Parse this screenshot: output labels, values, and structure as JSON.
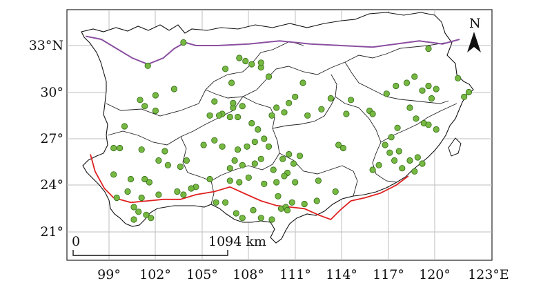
{
  "map": {
    "x_ticks": [
      "99°",
      "102°",
      "105°",
      "108°",
      "111°",
      "114°",
      "117°",
      "120°",
      "123°E"
    ],
    "y_ticks": [
      "33°N",
      "30°",
      "27°",
      "24°",
      "21°"
    ],
    "north_label": "N",
    "scale_start": "0",
    "scale_end": "1094 km",
    "colors": {
      "site": "#77b843",
      "north_line": "#8a4fa0",
      "south_line": "#e02020",
      "boundary": "#222222",
      "grid": "#bdbdbd"
    },
    "lon_range": [
      97,
      124
    ],
    "lat_range": [
      20,
      35
    ],
    "north_boundary_line": [
      [
        97.5,
        33.6
      ],
      [
        98.5,
        33.4
      ],
      [
        99.5,
        32.8
      ],
      [
        100.5,
        32.2
      ],
      [
        101.5,
        31.8
      ],
      [
        102.5,
        32.2
      ],
      [
        103.2,
        32.8
      ],
      [
        103.9,
        33.2
      ],
      [
        104.6,
        33.0
      ],
      [
        106,
        33.0
      ],
      [
        108,
        33.1
      ],
      [
        110,
        33.3
      ],
      [
        112,
        33.1
      ],
      [
        114,
        33.0
      ],
      [
        116,
        32.9
      ],
      [
        117.5,
        33.1
      ],
      [
        119,
        33.3
      ],
      [
        120.5,
        33.1
      ],
      [
        121.6,
        33.4
      ]
    ],
    "south_boundary_line": [
      [
        97.8,
        26.0
      ],
      [
        98.1,
        24.9
      ],
      [
        98.7,
        23.8
      ],
      [
        99.3,
        23.2
      ],
      [
        100.4,
        22.9
      ],
      [
        101.5,
        23.0
      ],
      [
        102.5,
        23.1
      ],
      [
        103.6,
        23.1
      ],
      [
        104.6,
        23.4
      ],
      [
        105.8,
        23.6
      ],
      [
        106.8,
        23.9
      ],
      [
        107.9,
        23.4
      ],
      [
        108.8,
        23.0
      ],
      [
        109.8,
        22.7
      ],
      [
        110.7,
        22.6
      ],
      [
        111.6,
        22.5
      ],
      [
        112.5,
        22.1
      ],
      [
        113.3,
        21.8
      ],
      [
        113.9,
        22.4
      ],
      [
        114.6,
        23.0
      ],
      [
        115.5,
        23.2
      ],
      [
        116.5,
        23.5
      ],
      [
        117.5,
        24.0
      ],
      [
        118.3,
        24.6
      ]
    ],
    "sites": [
      [
        103.8,
        33.2
      ],
      [
        101.5,
        31.7
      ],
      [
        107.4,
        32.2
      ],
      [
        107.8,
        32.0
      ],
      [
        108.2,
        31.8
      ],
      [
        108.8,
        31.6
      ],
      [
        109.3,
        31.0
      ],
      [
        108.8,
        31.9
      ],
      [
        106.5,
        31.5
      ],
      [
        106.9,
        30.6
      ],
      [
        102.0,
        29.8
      ],
      [
        103.2,
        30.2
      ],
      [
        101.0,
        29.5
      ],
      [
        101.3,
        29.1
      ],
      [
        102.0,
        28.8
      ],
      [
        107.0,
        29.0
      ],
      [
        107.6,
        29.1
      ],
      [
        106.3,
        28.6
      ],
      [
        106.8,
        28.4
      ],
      [
        107.3,
        28.4
      ],
      [
        105.8,
        29.4
      ],
      [
        105.5,
        28.5
      ],
      [
        106.1,
        28.5
      ],
      [
        108.2,
        28.0
      ],
      [
        108.6,
        27.6
      ],
      [
        109.5,
        28.5
      ],
      [
        109.8,
        29.0
      ],
      [
        110.6,
        29.3
      ],
      [
        110.3,
        28.7
      ],
      [
        111.8,
        28.5
      ],
      [
        100.0,
        27.8
      ],
      [
        99.3,
        26.4
      ],
      [
        99.7,
        26.4
      ],
      [
        101.1,
        26.3
      ],
      [
        102.6,
        26.2
      ],
      [
        102.2,
        25.6
      ],
      [
        102.8,
        25.3
      ],
      [
        103.6,
        25.2
      ],
      [
        104.0,
        25.6
      ],
      [
        105.1,
        26.6
      ],
      [
        105.8,
        26.9
      ],
      [
        106.3,
        26.5
      ],
      [
        107.3,
        26.3
      ],
      [
        107.9,
        26.5
      ],
      [
        108.4,
        26.8
      ],
      [
        109.0,
        27.0
      ],
      [
        109.3,
        26.5
      ],
      [
        107.1,
        25.6
      ],
      [
        106.8,
        25.1
      ],
      [
        107.6,
        25.3
      ],
      [
        108.4,
        25.4
      ],
      [
        108.8,
        25.7
      ],
      [
        109.6,
        25.0
      ],
      [
        110.2,
        25.7
      ],
      [
        110.6,
        26.0
      ],
      [
        110.9,
        25.4
      ],
      [
        111.3,
        25.9
      ],
      [
        110.5,
        24.8
      ],
      [
        111.0,
        24.2
      ],
      [
        110.3,
        24.6
      ],
      [
        109.8,
        24.2
      ],
      [
        109.0,
        24.1
      ],
      [
        108.0,
        24.5
      ],
      [
        107.4,
        24.2
      ],
      [
        106.8,
        24.3
      ],
      [
        105.5,
        24.4
      ],
      [
        104.6,
        23.9
      ],
      [
        103.8,
        23.4
      ],
      [
        103.4,
        23.6
      ],
      [
        102.2,
        23.4
      ],
      [
        101.1,
        23.2
      ],
      [
        100.6,
        22.6
      ],
      [
        100.9,
        22.3
      ],
      [
        101.4,
        22.1
      ],
      [
        101.7,
        21.9
      ],
      [
        100.6,
        21.8
      ],
      [
        100.2,
        23.6
      ],
      [
        99.5,
        23.2
      ],
      [
        99.3,
        24.7
      ],
      [
        100.4,
        24.4
      ],
      [
        101.3,
        24.4
      ],
      [
        101.6,
        24.2
      ],
      [
        104.3,
        23.8
      ],
      [
        105.9,
        22.9
      ],
      [
        106.5,
        22.9
      ],
      [
        107.2,
        22.2
      ],
      [
        107.6,
        21.9
      ],
      [
        108.3,
        22.4
      ],
      [
        108.8,
        21.9
      ],
      [
        109.5,
        21.8
      ],
      [
        110.1,
        22.5
      ],
      [
        110.4,
        22.6
      ],
      [
        110.8,
        22.9
      ],
      [
        110.5,
        22.4
      ],
      [
        109.9,
        23.3
      ],
      [
        111.6,
        22.8
      ],
      [
        112.4,
        23.0
      ],
      [
        113.6,
        23.6
      ],
      [
        112.5,
        24.3
      ],
      [
        113.8,
        26.6
      ],
      [
        114.1,
        26.4
      ],
      [
        114.3,
        28.6
      ],
      [
        114.6,
        29.5
      ],
      [
        115.8,
        28.8
      ],
      [
        116.0,
        28.6
      ],
      [
        116.9,
        29.9
      ],
      [
        117.5,
        30.4
      ],
      [
        118.2,
        30.6
      ],
      [
        118.7,
        31.0
      ],
      [
        119.2,
        30.1
      ],
      [
        119.6,
        30.4
      ],
      [
        119.8,
        29.6
      ],
      [
        118.4,
        29.0
      ],
      [
        118.8,
        28.3
      ],
      [
        119.3,
        28.0
      ],
      [
        119.6,
        27.9
      ],
      [
        120.1,
        27.6
      ],
      [
        117.6,
        27.7
      ],
      [
        117.2,
        27.1
      ],
      [
        116.8,
        26.6
      ],
      [
        117.1,
        26.1
      ],
      [
        117.7,
        26.2
      ],
      [
        117.4,
        25.6
      ],
      [
        117.9,
        25.1
      ],
      [
        118.4,
        25.6
      ],
      [
        118.9,
        25.8
      ],
      [
        119.2,
        25.4
      ],
      [
        118.7,
        24.9
      ],
      [
        116.4,
        25.3
      ],
      [
        116.0,
        25.0
      ],
      [
        120.1,
        30.2
      ],
      [
        121.5,
        30.9
      ],
      [
        122.2,
        30.0
      ],
      [
        121.9,
        29.7
      ],
      [
        119.6,
        32.8
      ],
      [
        113.3,
        29.6
      ],
      [
        112.7,
        28.9
      ],
      [
        111.0,
        29.7
      ],
      [
        111.5,
        30.6
      ],
      [
        107.0,
        29.3
      ]
    ]
  }
}
